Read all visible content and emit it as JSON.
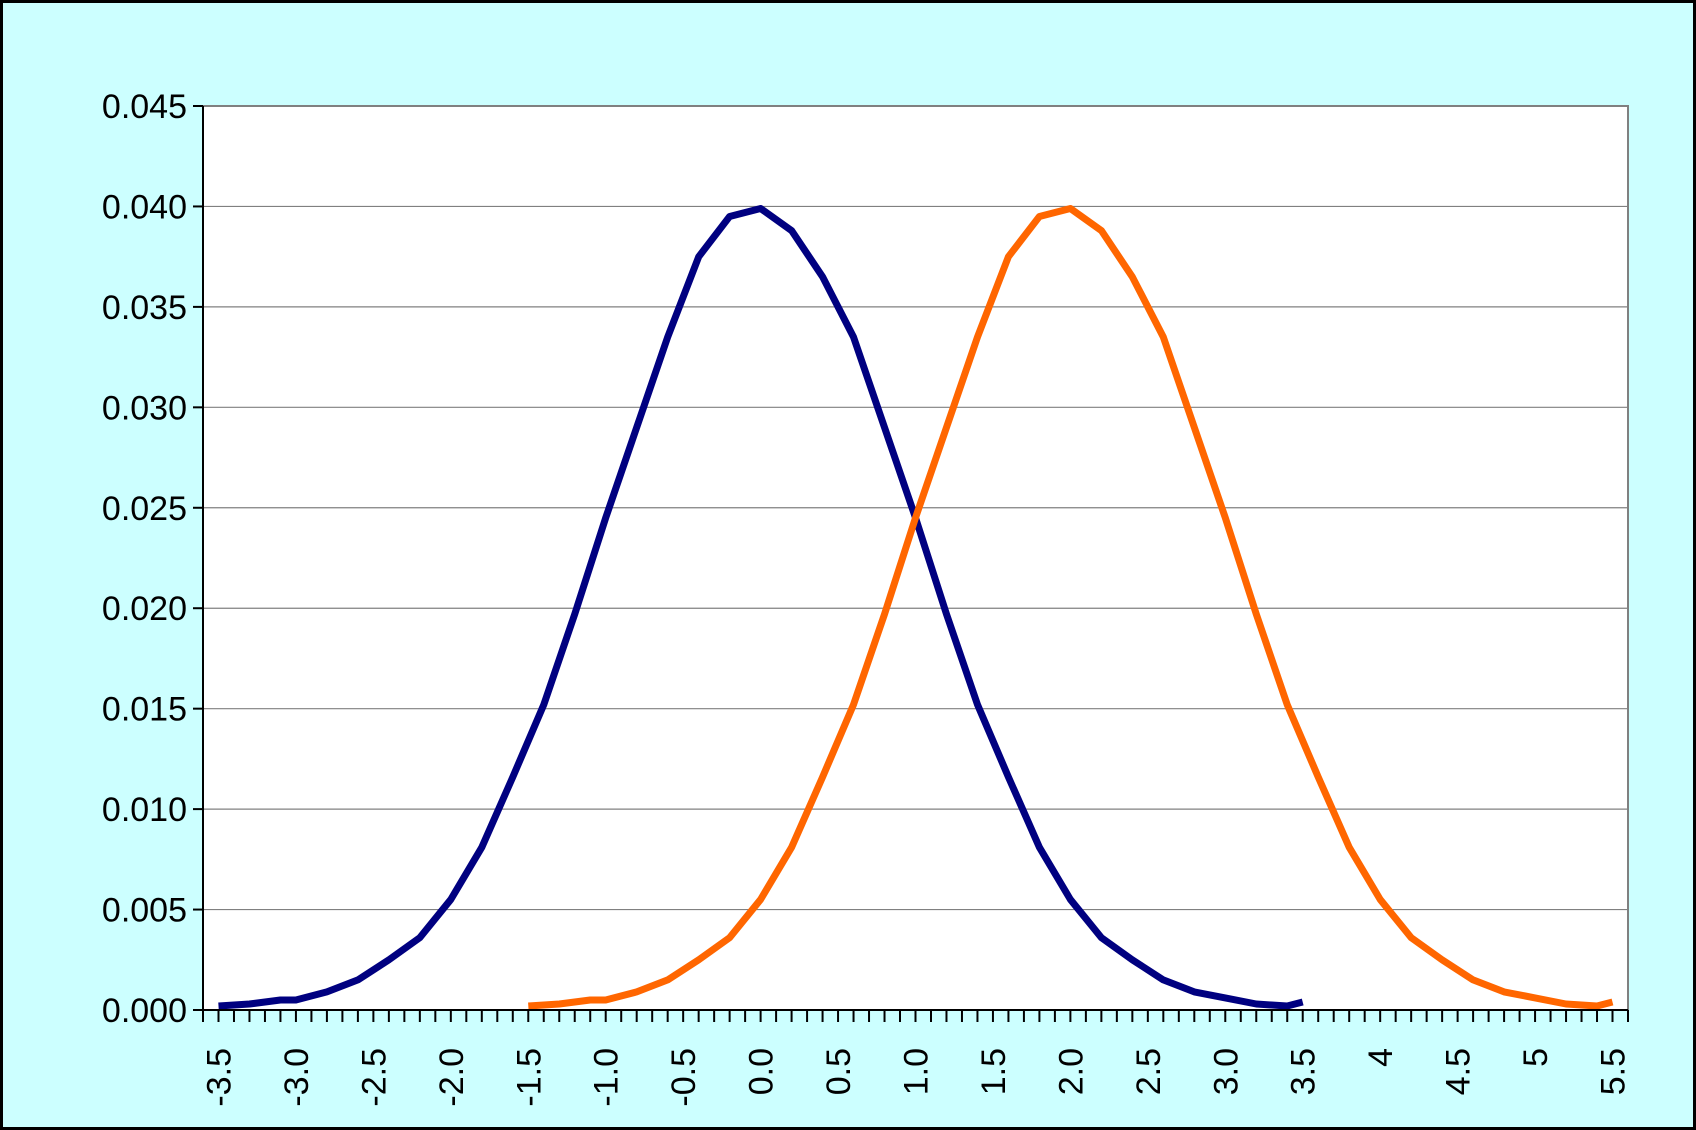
{
  "chart_data": {
    "type": "line",
    "title": "",
    "xlabel": "",
    "ylabel": "",
    "ylim": [
      0,
      0.045
    ],
    "xlim": [
      -3.6,
      5.6
    ],
    "yticks": [
      "0.000",
      "0.005",
      "0.010",
      "0.015",
      "0.020",
      "0.025",
      "0.030",
      "0.035",
      "0.040",
      "0.045"
    ],
    "xtick_labels": [
      {
        "x": -3.5,
        "label": "-3.5"
      },
      {
        "x": -3.0,
        "label": "-3.0"
      },
      {
        "x": -2.5,
        "label": "-2.5"
      },
      {
        "x": -2.0,
        "label": "-2.0"
      },
      {
        "x": -1.5,
        "label": "-1.5"
      },
      {
        "x": -1.0,
        "label": "-1.0"
      },
      {
        "x": -0.5,
        "label": "-0.5"
      },
      {
        "x": 0.0,
        "label": "0.0"
      },
      {
        "x": 0.5,
        "label": "0.5"
      },
      {
        "x": 1.0,
        "label": "1.0"
      },
      {
        "x": 1.5,
        "label": "1.5"
      },
      {
        "x": 2.0,
        "label": "2.0"
      },
      {
        "x": 2.5,
        "label": "2.5"
      },
      {
        "x": 3.0,
        "label": "3.0"
      },
      {
        "x": 3.5,
        "label": "3.5"
      },
      {
        "x": 4.0,
        "label": "4"
      },
      {
        "x": 4.5,
        "label": "4.5"
      },
      {
        "x": 5.0,
        "label": "5"
      },
      {
        "x": 5.5,
        "label": "5.5"
      }
    ],
    "grid": true,
    "background": "#ccffff",
    "plot_background": "#ffffff",
    "series": [
      {
        "color": "#000080",
        "x": [
          -3.5,
          -3.3,
          -3.1,
          -3.0,
          -2.8,
          -2.6,
          -2.4,
          -2.2,
          -2.0,
          -1.8,
          -1.6,
          -1.4,
          -1.2,
          -1.0,
          -0.8,
          -0.6,
          -0.4,
          -0.2,
          0.0,
          0.2,
          0.4,
          0.6,
          0.8,
          1.0,
          1.2,
          1.4,
          1.6,
          1.8,
          2.0,
          2.2,
          2.4,
          2.6,
          2.8,
          3.0,
          3.2,
          3.4,
          3.5
        ],
        "y": [
          0.0002,
          0.0003,
          0.0005,
          0.0005,
          0.0009,
          0.0015,
          0.0025,
          0.0036,
          0.0055,
          0.0081,
          0.0116,
          0.0152,
          0.0197,
          0.0245,
          0.029,
          0.0335,
          0.0375,
          0.0395,
          0.0399,
          0.0388,
          0.0365,
          0.0335,
          0.029,
          0.0245,
          0.0197,
          0.0152,
          0.0116,
          0.0081,
          0.0055,
          0.0036,
          0.0025,
          0.0015,
          0.0009,
          0.0006,
          0.0003,
          0.0002,
          0.0004
        ]
      },
      {
        "color": "#ff6600",
        "x": [
          -1.5,
          -1.3,
          -1.1,
          -1.0,
          -0.8,
          -0.6,
          -0.4,
          -0.2,
          0.0,
          0.2,
          0.4,
          0.6,
          0.8,
          1.0,
          1.2,
          1.4,
          1.6,
          1.8,
          2.0,
          2.2,
          2.4,
          2.6,
          2.8,
          3.0,
          3.2,
          3.4,
          3.6,
          3.8,
          4.0,
          4.2,
          4.4,
          4.6,
          4.8,
          5.0,
          5.2,
          5.4,
          5.5
        ],
        "y": [
          0.0002,
          0.0003,
          0.0005,
          0.0005,
          0.0009,
          0.0015,
          0.0025,
          0.0036,
          0.0055,
          0.0081,
          0.0116,
          0.0152,
          0.0197,
          0.0245,
          0.029,
          0.0335,
          0.0375,
          0.0395,
          0.0399,
          0.0388,
          0.0365,
          0.0335,
          0.029,
          0.0245,
          0.0197,
          0.0152,
          0.0116,
          0.0081,
          0.0055,
          0.0036,
          0.0025,
          0.0015,
          0.0009,
          0.0006,
          0.0003,
          0.0002,
          0.0004
        ]
      }
    ]
  }
}
